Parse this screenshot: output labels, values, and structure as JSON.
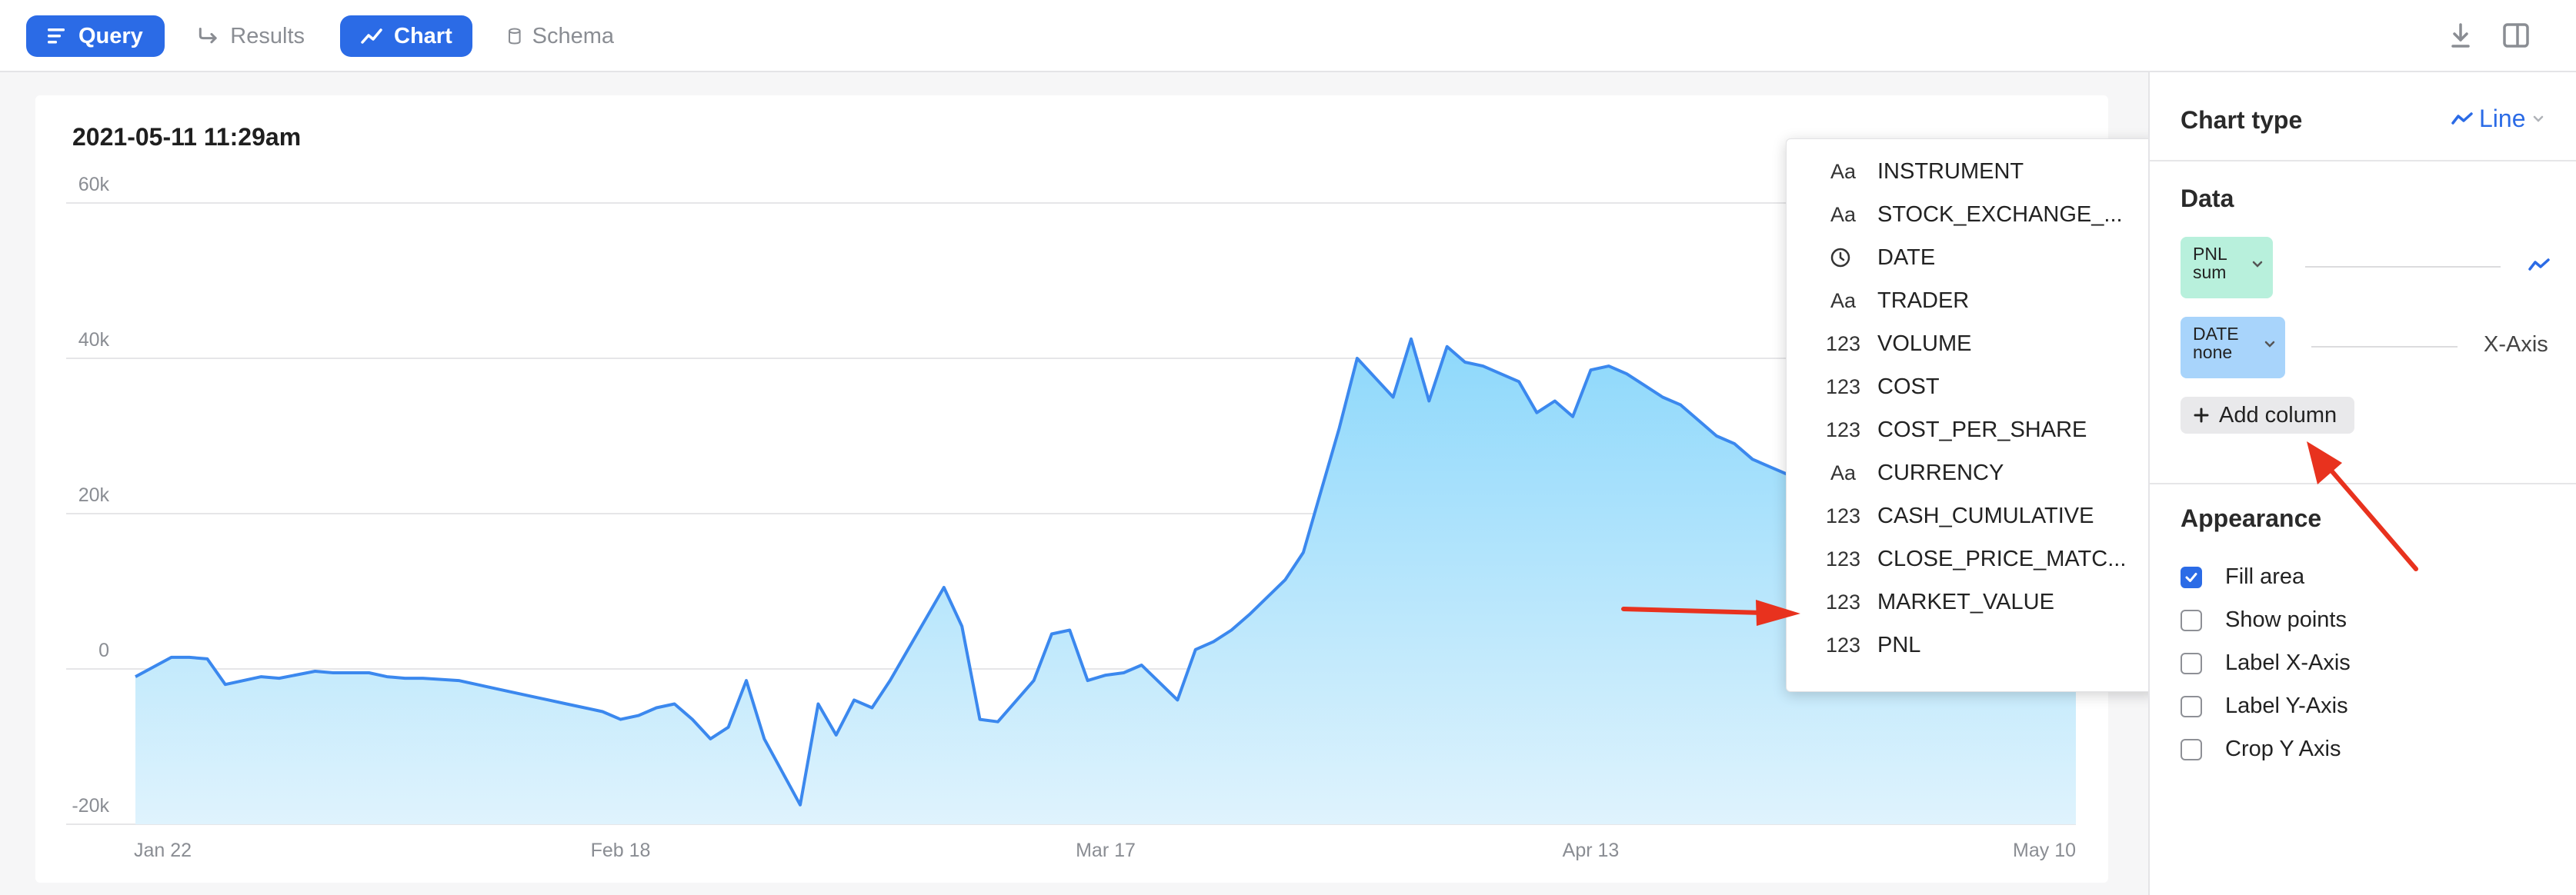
{
  "toolbar": {
    "tabs": [
      {
        "label": "Query",
        "active": true,
        "icon": "menu-lines-icon"
      },
      {
        "label": "Results",
        "active": false,
        "icon": "arrow-turn-icon"
      },
      {
        "label": "Chart",
        "active": true,
        "icon": "line-chart-icon"
      },
      {
        "label": "Schema",
        "active": false,
        "icon": "database-icon"
      }
    ],
    "right_icons": [
      "download-icon",
      "split-panel-icon"
    ],
    "accent": "#2b6be6"
  },
  "chart": {
    "title": "2021-05-11 11:29am",
    "fill_color": "#a5defa",
    "line_color": "#3b88ee"
  },
  "chart_data": {
    "type": "area",
    "title": "2021-05-11 11:29am",
    "xlabel": "",
    "ylabel": "",
    "ylim": [
      -20000,
      60000
    ],
    "y_ticks": [
      "60k",
      "40k",
      "20k",
      "0",
      "-20k"
    ],
    "y_tick_values": [
      60000,
      40000,
      20000,
      0,
      -20000
    ],
    "x_ticks": [
      "Jan 22",
      "Feb 18",
      "Mar 17",
      "Apr 13",
      "May 10"
    ],
    "x_tick_days": [
      0,
      27,
      54,
      81,
      108
    ],
    "grid": true,
    "series": [
      {
        "name": "PNL sum",
        "x_days": [
          0,
          2,
          3,
          4,
          5,
          7,
          8,
          10,
          11,
          12,
          13,
          14,
          15,
          16,
          18,
          19,
          20,
          22,
          23,
          24,
          25,
          26,
          27,
          28,
          29,
          30,
          31,
          32,
          33,
          34,
          35,
          37,
          38,
          39,
          40,
          41,
          42,
          43,
          44,
          45,
          46,
          47,
          48,
          50,
          51,
          52,
          53,
          54,
          55,
          56,
          58,
          59,
          60,
          61,
          62,
          64,
          65,
          66,
          67,
          68,
          69,
          70,
          71,
          72,
          73,
          74,
          75,
          76,
          77,
          78,
          79,
          80,
          81,
          82,
          83,
          84,
          85,
          86,
          87,
          88,
          89,
          90,
          91,
          92,
          93,
          94,
          95,
          96,
          97,
          98,
          99,
          100,
          101,
          102,
          103,
          104,
          105,
          106,
          107,
          108
        ],
        "values": [
          -1000,
          1500,
          1500,
          1300,
          -2000,
          -1000,
          -1200,
          -300,
          -500,
          -500,
          -500,
          -1000,
          -1200,
          -1200,
          -1500,
          -2000,
          -2500,
          -3500,
          -4000,
          -4500,
          -5000,
          -5500,
          -6500,
          -6000,
          -5000,
          -4500,
          -6500,
          -9000,
          -7500,
          -1500,
          -9000,
          -17500,
          -4500,
          -8500,
          -4000,
          -5000,
          -1500,
          2500,
          6500,
          10500,
          5500,
          -6500,
          -6800,
          -1500,
          4500,
          5000,
          -1500,
          -800,
          -500,
          500,
          -4000,
          2500,
          3500,
          5000,
          7000,
          11500,
          15000,
          23000,
          31000,
          40000,
          37500,
          35000,
          42500,
          34500,
          41500,
          39500,
          39000,
          38000,
          37000,
          33000,
          34500,
          32500,
          38500,
          39000,
          38000,
          36500,
          35000,
          34000,
          32000,
          30000,
          29000,
          27000,
          26000,
          25000,
          24500,
          24000,
          23500,
          23000,
          22500,
          22000,
          21500,
          21000,
          20500,
          20000,
          19500,
          19000,
          18500,
          18000,
          17500,
          17000
        ]
      }
    ]
  },
  "panel": {
    "chart_type_label": "Chart type",
    "chart_type_value": "Line",
    "data_heading": "Data",
    "pill_y": {
      "line1": "PNL",
      "line2": "sum",
      "color": "#b8f0dc"
    },
    "pill_x": {
      "line1": "DATE",
      "line2": "none",
      "color": "#a8d4fb"
    },
    "x_axis_label": "X-Axis",
    "add_column_label": "Add column",
    "appearance_heading": "Appearance",
    "options": [
      {
        "label": "Fill area",
        "checked": true
      },
      {
        "label": "Show points",
        "checked": false
      },
      {
        "label": "Label X-Axis",
        "checked": false
      },
      {
        "label": "Label Y-Axis",
        "checked": false
      },
      {
        "label": "Crop Y Axis",
        "checked": false
      }
    ]
  },
  "dropdown": {
    "items": [
      {
        "type": "Aa",
        "label": "INSTRUMENT"
      },
      {
        "type": "Aa",
        "label": "STOCK_EXCHANGE_..."
      },
      {
        "type": "clock",
        "label": "DATE"
      },
      {
        "type": "Aa",
        "label": "TRADER"
      },
      {
        "type": "123",
        "label": "VOLUME"
      },
      {
        "type": "123",
        "label": "COST"
      },
      {
        "type": "123",
        "label": "COST_PER_SHARE"
      },
      {
        "type": "Aa",
        "label": "CURRENCY"
      },
      {
        "type": "123",
        "label": "CASH_CUMULATIVE"
      },
      {
        "type": "123",
        "label": "CLOSE_PRICE_MATC..."
      },
      {
        "type": "123",
        "label": "MARKET_VALUE"
      },
      {
        "type": "123",
        "label": "PNL"
      }
    ]
  },
  "annotations": {
    "arrow_color": "#e8321e"
  }
}
